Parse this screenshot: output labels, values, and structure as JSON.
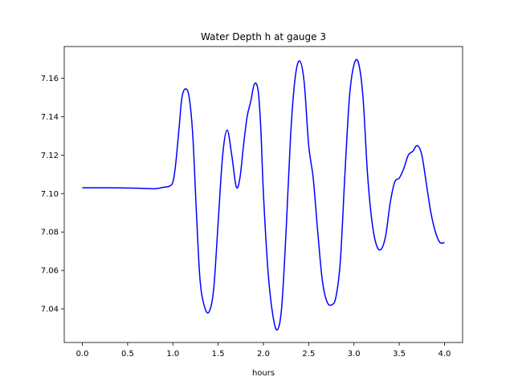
{
  "chart_data": {
    "type": "line",
    "title": "Water Depth h at gauge 3",
    "xlabel": "hours",
    "ylabel": "",
    "xlim": [
      -0.2,
      4.2
    ],
    "ylim": [
      7.0225,
      7.1765
    ],
    "xticks": [
      0.0,
      0.5,
      1.0,
      1.5,
      2.0,
      2.5,
      3.0,
      3.5,
      4.0
    ],
    "xtick_labels": [
      "0.0",
      "0.5",
      "1.0",
      "1.5",
      "2.0",
      "2.5",
      "3.0",
      "3.5",
      "4.0"
    ],
    "yticks": [
      7.04,
      7.06,
      7.08,
      7.1,
      7.12,
      7.14,
      7.16
    ],
    "ytick_labels": [
      "7.04",
      "7.06",
      "7.08",
      "7.10",
      "7.12",
      "7.14",
      "7.16"
    ],
    "grid": false,
    "legend": null,
    "series": [
      {
        "color": "#0000ff",
        "x": [
          0.0,
          0.3,
          0.6,
          0.8,
          0.9,
          0.96,
          1.0,
          1.03,
          1.07,
          1.1,
          1.14,
          1.18,
          1.22,
          1.26,
          1.3,
          1.35,
          1.4,
          1.45,
          1.5,
          1.55,
          1.6,
          1.65,
          1.7,
          1.74,
          1.78,
          1.82,
          1.86,
          1.9,
          1.94,
          1.97,
          2.0,
          2.05,
          2.1,
          2.15,
          2.2,
          2.25,
          2.3,
          2.35,
          2.4,
          2.45,
          2.5,
          2.55,
          2.6,
          2.65,
          2.7,
          2.75,
          2.8,
          2.85,
          2.9,
          2.95,
          3.0,
          3.05,
          3.1,
          3.15,
          3.2,
          3.25,
          3.3,
          3.35,
          3.4,
          3.45,
          3.5,
          3.55,
          3.6,
          3.65,
          3.7,
          3.75,
          3.8,
          3.85,
          3.9,
          3.95,
          4.0
        ],
        "y": [
          7.103,
          7.103,
          7.1028,
          7.1025,
          7.1033,
          7.1038,
          7.106,
          7.115,
          7.135,
          7.15,
          7.1545,
          7.15,
          7.13,
          7.09,
          7.055,
          7.041,
          7.0385,
          7.05,
          7.085,
          7.12,
          7.133,
          7.12,
          7.1035,
          7.108,
          7.125,
          7.14,
          7.148,
          7.157,
          7.154,
          7.135,
          7.1,
          7.06,
          7.038,
          7.029,
          7.04,
          7.08,
          7.13,
          7.16,
          7.169,
          7.158,
          7.125,
          7.108,
          7.08,
          7.055,
          7.044,
          7.042,
          7.046,
          7.065,
          7.11,
          7.15,
          7.167,
          7.168,
          7.15,
          7.11,
          7.085,
          7.073,
          7.071,
          7.078,
          7.095,
          7.106,
          7.108,
          7.113,
          7.12,
          7.122,
          7.125,
          7.12,
          7.105,
          7.09,
          7.08,
          7.0745,
          7.0745
        ]
      }
    ]
  }
}
